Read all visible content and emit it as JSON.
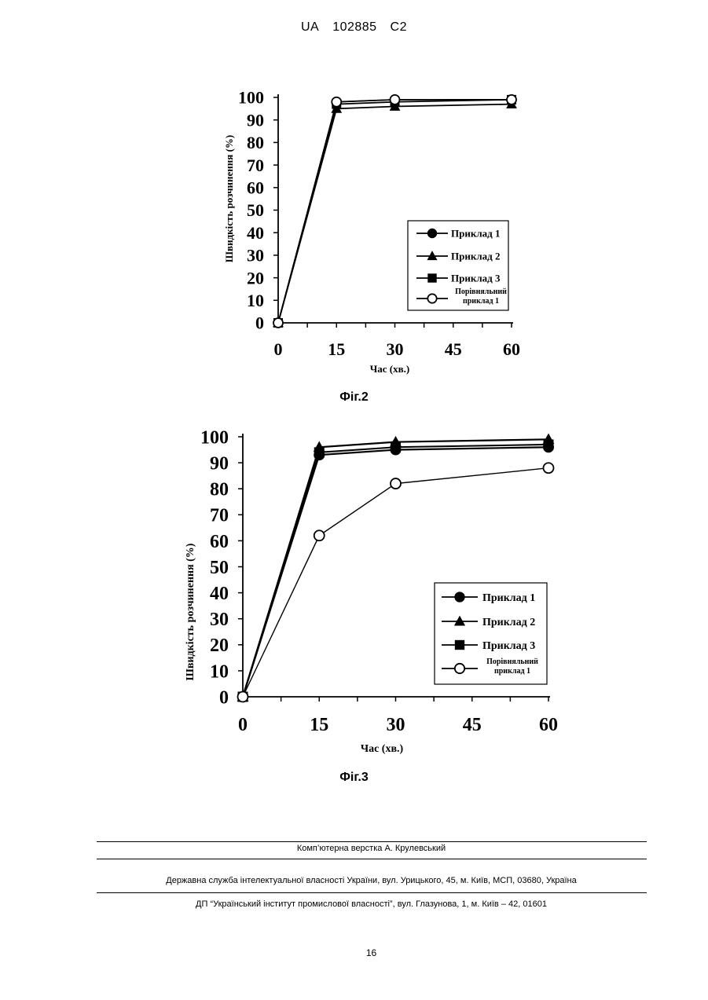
{
  "header": {
    "country": "UA",
    "number": "102885",
    "kind": "C2"
  },
  "figures": [
    {
      "caption": "Фіг.2"
    },
    {
      "caption": "Фіг.3"
    }
  ],
  "chart_data": [
    {
      "type": "line",
      "title": "",
      "xlabel": "Час (хв.)",
      "ylabel": "Швидкість розчинення (%)",
      "x": [
        0,
        15,
        30,
        60
      ],
      "xticks": [
        "0",
        "15",
        "30",
        "45",
        "60"
      ],
      "yticks": [
        "0",
        "10",
        "20",
        "30",
        "40",
        "50",
        "60",
        "70",
        "80",
        "90",
        "100"
      ],
      "xlim": [
        0,
        60
      ],
      "ylim": [
        0,
        100
      ],
      "legend_position": "bottom-right",
      "series": [
        {
          "name": "Приклад 1",
          "marker": "circle-filled",
          "values": [
            0,
            98,
            99,
            99
          ]
        },
        {
          "name": "Приклад 2",
          "marker": "triangle-filled",
          "values": [
            0,
            95,
            96,
            97
          ]
        },
        {
          "name": "Приклад 3",
          "marker": "square-filled",
          "values": [
            0,
            97,
            98,
            99
          ]
        },
        {
          "name": "Порівняльний приклад 1",
          "name_lines": [
            "Порівняльний",
            "приклад 1"
          ],
          "marker": "circle-open",
          "values": [
            0,
            98,
            99,
            99
          ]
        }
      ]
    },
    {
      "type": "line",
      "title": "",
      "xlabel": "Час (хв.)",
      "ylabel": "Швидкість розчинення (%)",
      "x": [
        0,
        15,
        30,
        60
      ],
      "xticks": [
        "0",
        "15",
        "30",
        "45",
        "60"
      ],
      "yticks": [
        "0",
        "10",
        "20",
        "30",
        "40",
        "50",
        "60",
        "70",
        "80",
        "90",
        "100"
      ],
      "xlim": [
        0,
        60
      ],
      "ylim": [
        0,
        100
      ],
      "legend_position": "bottom-right",
      "series": [
        {
          "name": "Приклад 1",
          "marker": "circle-filled",
          "values": [
            0,
            93,
            95,
            96
          ]
        },
        {
          "name": "Приклад 2",
          "marker": "triangle-filled",
          "values": [
            0,
            96,
            98,
            99
          ]
        },
        {
          "name": "Приклад 3",
          "marker": "square-filled",
          "values": [
            0,
            94,
            96,
            97
          ]
        },
        {
          "name": "Порівняльний приклад 1",
          "name_lines": [
            "Порівняльний",
            "приклад 1"
          ],
          "marker": "circle-open",
          "values": [
            0,
            62,
            82,
            88
          ]
        }
      ]
    }
  ],
  "footer": {
    "layout_credit": "Комп’ютерна верстка А. Крулевський",
    "agency": "Державна служба інтелектуальної власності України, вул. Урицького, 45, м. Київ, МСП, 03680, Україна",
    "institute": "ДП “Український інститут промислової власності”, вул. Глазунова, 1, м. Київ – 42, 01601"
  },
  "page_number": "16"
}
